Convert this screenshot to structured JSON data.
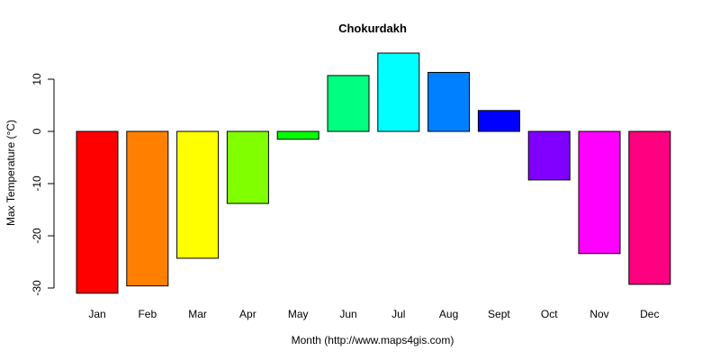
{
  "chart_data": {
    "type": "bar",
    "title": "Chokurdakh",
    "xlabel": "Month (http://www.maps4gis.com)",
    "ylabel": "Max Temperature (°C)",
    "categories": [
      "Jan",
      "Feb",
      "Mar",
      "Apr",
      "May",
      "Jun",
      "Jul",
      "Aug",
      "Sept",
      "Oct",
      "Nov",
      "Dec"
    ],
    "values": [
      -31.0,
      -29.6,
      -24.3,
      -13.8,
      -1.5,
      10.7,
      15.0,
      11.3,
      4.0,
      -9.3,
      -23.4,
      -29.3
    ],
    "colors": [
      "#FF0000",
      "#FF8000",
      "#FFFF00",
      "#80FF00",
      "#00FF00",
      "#00FF80",
      "#00FFFF",
      "#0080FF",
      "#0000FF",
      "#8000FF",
      "#FF00FF",
      "#FF0080"
    ],
    "yticks": [
      -30,
      -20,
      -10,
      0,
      10
    ],
    "ylim": [
      -31.5,
      16
    ],
    "grid": false,
    "legend": "none"
  }
}
